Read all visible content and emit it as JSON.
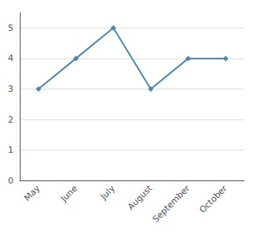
{
  "chart_data": {
    "type": "line",
    "categories": [
      "May",
      "June",
      "July",
      "August",
      "September",
      "October"
    ],
    "values": [
      3,
      4,
      5,
      3,
      4,
      4
    ],
    "color": "#4a86b8",
    "marker": "diamond",
    "ylim": [
      0,
      5.5
    ],
    "yticks": [
      0,
      1,
      2,
      3,
      4,
      5
    ],
    "grid": true
  }
}
